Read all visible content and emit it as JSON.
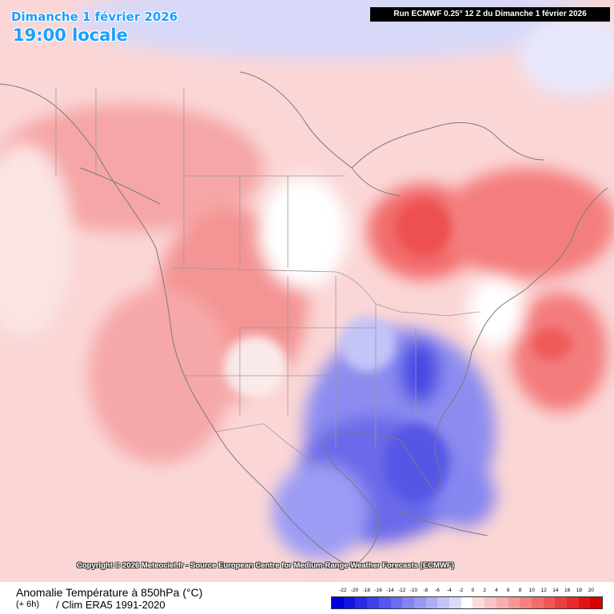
{
  "header": {
    "date": "Dimanche 1 février 2026",
    "time": "19:00 locale",
    "run": "Run ECMWF 0.25° 12 Z du Dimanche 1 février 2026"
  },
  "copyright": "Copyright © 2026 Meteociel.fr - Source European Centre for Medium-Range Weather Forecasts (ECMWF)",
  "footer": {
    "title": "Anomalie Température à 850hPa (°C)",
    "step": "(+ 6h)",
    "clim": "/ Clim ERA5 1991-2020"
  },
  "legend": {
    "ticks": [
      "-22",
      "-20",
      "-18",
      "-16",
      "-14",
      "-12",
      "-10",
      "-8",
      "-6",
      "-4",
      "-2",
      "0",
      "2",
      "4",
      "6",
      "8",
      "10",
      "12",
      "14",
      "16",
      "18",
      "20"
    ],
    "colors": [
      "#0000d8",
      "#1414e0",
      "#2a2ae6",
      "#4040ea",
      "#5656ee",
      "#6c6cf0",
      "#8282f2",
      "#9898f4",
      "#aeaef6",
      "#c4c4f8",
      "#dcdcfa",
      "#ffffff",
      "#fcdcdc",
      "#fac4c4",
      "#f8aeae",
      "#f69898",
      "#f48282",
      "#f26c6c",
      "#f05656",
      "#ec4040",
      "#e82a2a",
      "#e01414",
      "#d80000"
    ]
  },
  "colors": {
    "accent_title": "#1aa0ff",
    "warm_anomaly": "#f47c7c",
    "cold_anomaly": "#5a5ae8",
    "coastline": "#7a7a7a"
  }
}
